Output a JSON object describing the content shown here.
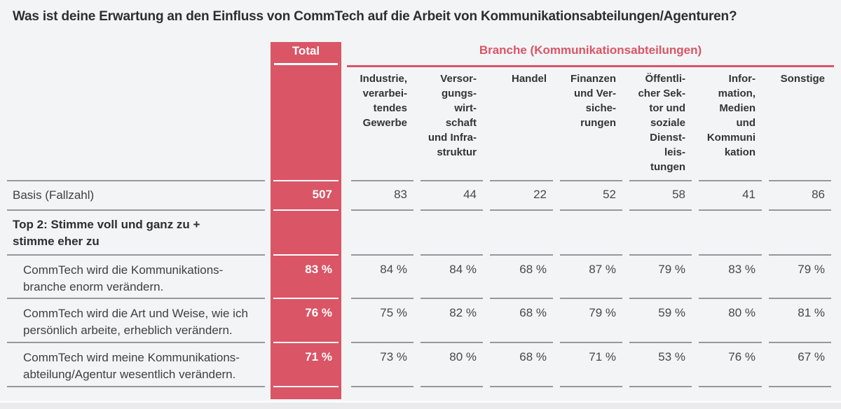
{
  "title": "Was ist deine Erwartung an den Einfluss von CommTech auf die Arbeit von Kommunikationsabteilungen/Agenturen?",
  "header": {
    "total_label": "Total",
    "group_label": "Branche (Kommunikationsabteilungen)"
  },
  "columns": [
    "Industrie,\nverarbei-\ntendes\nGewerbe",
    "Versor-\ngungs-\nwirt-\nschaft\nund Infra-\nstruktur",
    "Handel",
    "Finanzen\nund Ver-\nsiche-\nrungen",
    "Öffentli-\ncher Sek-\ntor und\nsoziale\nDienst-\nleis-\ntungen",
    "Infor-\nmation,\nMedien\nund\nKommuni\nkation",
    "Sonstige"
  ],
  "rows": [
    {
      "label": "Basis (Fallzahl)",
      "total": "507",
      "values": [
        "83",
        "44",
        "22",
        "52",
        "58",
        "41",
        "86"
      ]
    },
    {
      "label": "Top 2: Stimme voll und ganz zu +\nstimme eher zu",
      "total": "",
      "values": []
    },
    {
      "label": "CommTech wird die Kommunikations-\nbranche enorm verändern.",
      "total": "83 %",
      "values": [
        "84 %",
        "84 %",
        "68 %",
        "87 %",
        "79 %",
        "83 %",
        "79 %"
      ]
    },
    {
      "label": "CommTech wird die Art und Weise, wie ich\npersönlich arbeite, erheblich verändern.",
      "total": "76 %",
      "values": [
        "75 %",
        "82 %",
        "68 %",
        "79 %",
        "59 %",
        "80 %",
        "81 %"
      ]
    },
    {
      "label": "CommTech wird meine Kommunikations-\nabteilung/Agentur wesentlich verändern.",
      "total": "71 %",
      "values": [
        "73 %",
        "80 %",
        "68 %",
        "71 %",
        "53 %",
        "76 %",
        "67 %"
      ]
    }
  ],
  "colors": {
    "accent_red": "#da5566",
    "background": "#f3f4f6",
    "separator_gray": "#98989c",
    "text_dark": "#2e2e30"
  },
  "chart_data": {
    "type": "table",
    "title": "Was ist deine Erwartung an den Einfluss von CommTech auf die Arbeit von Kommunikationsabteilungen/Agenturen?",
    "column_group": "Branche (Kommunikationsabteilungen)",
    "columns": [
      "Total",
      "Industrie, verarbeitendes Gewerbe",
      "Versorgungswirtschaft und Infrastruktur",
      "Handel",
      "Finanzen und Versicherungen",
      "Öffentlicher Sektor und soziale Dienstleistungen",
      "Information, Medien und Kommunikation",
      "Sonstige"
    ],
    "rows": [
      {
        "label": "Basis (Fallzahl)",
        "unit": "n",
        "values": [
          507,
          83,
          44,
          22,
          52,
          58,
          41,
          86
        ]
      },
      {
        "label": "Top 2: Stimme voll und ganz zu + stimme eher zu",
        "unit": null,
        "values": []
      },
      {
        "label": "CommTech wird die Kommunikationsbranche enorm verändern.",
        "unit": "%",
        "values": [
          83,
          84,
          84,
          68,
          87,
          79,
          83,
          79
        ]
      },
      {
        "label": "CommTech wird die Art und Weise, wie ich persönlich arbeite, erheblich verändern.",
        "unit": "%",
        "values": [
          76,
          75,
          82,
          68,
          79,
          59,
          80,
          81
        ]
      },
      {
        "label": "CommTech wird meine Kommunikationsabteilung/Agentur wesentlich verändern.",
        "unit": "%",
        "values": [
          71,
          73,
          80,
          68,
          71,
          53,
          76,
          67
        ]
      }
    ]
  }
}
